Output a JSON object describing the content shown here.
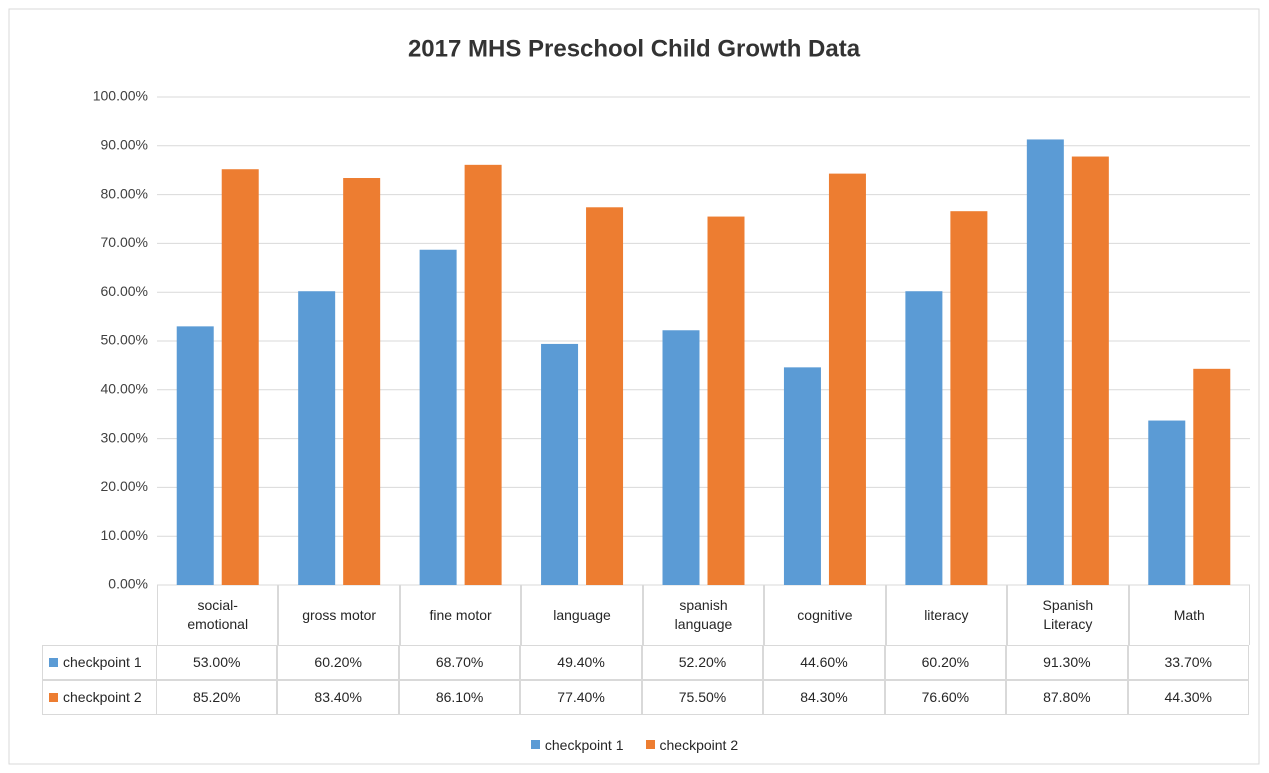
{
  "chart_data": {
    "type": "bar",
    "title": "2017 MHS Preschool Child Growth Data",
    "categories": [
      "social-\nemotional",
      "gross motor",
      "fine motor",
      "language",
      "spanish\nlanguage",
      "cognitive",
      "literacy",
      "Spanish\nLiteracy",
      "Math"
    ],
    "series": [
      {
        "name": "checkpoint 1",
        "color": "#5b9bd5",
        "values": [
          53.0,
          60.2,
          68.7,
          49.4,
          52.2,
          44.6,
          60.2,
          91.3,
          33.7
        ],
        "value_labels": [
          "53.00%",
          "60.20%",
          "68.70%",
          "49.40%",
          "52.20%",
          "44.60%",
          "60.20%",
          "91.30%",
          "33.70%"
        ]
      },
      {
        "name": "checkpoint 2",
        "color": "#ed7d31",
        "values": [
          85.2,
          83.4,
          86.1,
          77.4,
          75.5,
          84.3,
          76.6,
          87.8,
          44.3
        ],
        "value_labels": [
          "85.20%",
          "83.40%",
          "86.10%",
          "77.40%",
          "75.50%",
          "84.30%",
          "76.60%",
          "87.80%",
          "44.30%"
        ]
      }
    ],
    "ylim": [
      0,
      100
    ],
    "yticks": [
      {
        "value": 0,
        "label": "0.00%"
      },
      {
        "value": 10,
        "label": "10.00%"
      },
      {
        "value": 20,
        "label": "20.00%"
      },
      {
        "value": 30,
        "label": "30.00%"
      },
      {
        "value": 40,
        "label": "40.00%"
      },
      {
        "value": 50,
        "label": "50.00%"
      },
      {
        "value": 60,
        "label": "60.00%"
      },
      {
        "value": 70,
        "label": "70.00%"
      },
      {
        "value": 80,
        "label": "80.00%"
      },
      {
        "value": 90,
        "label": "90.00%"
      },
      {
        "value": 100,
        "label": "100.00%"
      }
    ],
    "grid": true,
    "legend": "bottom"
  }
}
